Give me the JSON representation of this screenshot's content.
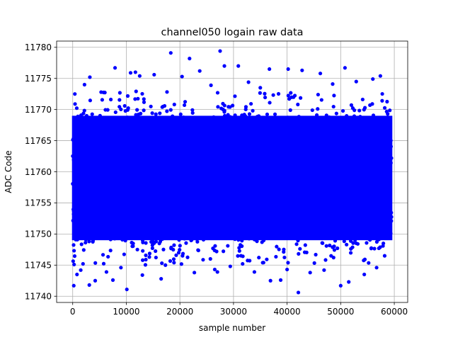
{
  "chart_data": {
    "type": "scatter",
    "title": "channel050 logain raw data",
    "xlabel": "sample number",
    "ylabel": "ADC Code",
    "xlim": [
      -3000,
      62500
    ],
    "ylim": [
      11739,
      11781
    ],
    "xticks": [
      0,
      10000,
      20000,
      30000,
      40000,
      50000,
      60000
    ],
    "xtick_labels": [
      "0",
      "10000",
      "20000",
      "30000",
      "40000",
      "50000",
      "60000"
    ],
    "yticks": [
      11740,
      11745,
      11750,
      11755,
      11760,
      11765,
      11770,
      11775,
      11780
    ],
    "ytick_labels": [
      "11740",
      "11745",
      "11750",
      "11755",
      "11760",
      "11765",
      "11770",
      "11775",
      "11780"
    ],
    "grid": true,
    "marker_color": "#0000ff",
    "series": [
      {
        "x_range": [
          0,
          59500
        ],
        "dense_band": [
          11746,
          11772
        ],
        "core": [
          11749,
          11769
        ],
        "outliers": [
          [
            200,
            11741.7
          ],
          [
            400,
            11772.5
          ],
          [
            800,
            11743.5
          ],
          [
            1500,
            11744.2
          ],
          [
            2200,
            11774.0
          ],
          [
            3200,
            11775.2
          ],
          [
            3100,
            11741.8
          ],
          [
            4200,
            11742.5
          ],
          [
            5300,
            11772.8
          ],
          [
            6300,
            11743.9
          ],
          [
            7900,
            11776.7
          ],
          [
            7500,
            11742.6
          ],
          [
            9000,
            11744.6
          ],
          [
            10100,
            11741.1
          ],
          [
            10800,
            11775.9
          ],
          [
            12500,
            11775.4
          ],
          [
            13000,
            11743.4
          ],
          [
            15200,
            11775.6
          ],
          [
            16500,
            11742.8
          ],
          [
            17300,
            11745.0
          ],
          [
            18300,
            11779.1
          ],
          [
            18900,
            11745.4
          ],
          [
            20400,
            11775.3
          ],
          [
            21800,
            11778.2
          ],
          [
            22700,
            11743.8
          ],
          [
            23700,
            11776.2
          ],
          [
            25800,
            11773.9
          ],
          [
            27000,
            11743.9
          ],
          [
            27500,
            11779.4
          ],
          [
            28300,
            11777.0
          ],
          [
            29400,
            11744.8
          ],
          [
            30900,
            11777.0
          ],
          [
            32800,
            11774.4
          ],
          [
            33900,
            11743.9
          ],
          [
            35000,
            11773.5
          ],
          [
            36900,
            11742.5
          ],
          [
            36700,
            11776.5
          ],
          [
            38800,
            11742.6
          ],
          [
            40200,
            11776.5
          ],
          [
            40000,
            11744.3
          ],
          [
            42100,
            11740.6
          ],
          [
            42800,
            11776.3
          ],
          [
            44300,
            11743.8
          ],
          [
            46200,
            11775.8
          ],
          [
            46900,
            11744.2
          ],
          [
            48500,
            11774.1
          ],
          [
            50000,
            11741.7
          ],
          [
            50800,
            11776.7
          ],
          [
            51500,
            11742.3
          ],
          [
            52900,
            11774.5
          ],
          [
            54400,
            11743.5
          ],
          [
            56000,
            11774.9
          ],
          [
            56700,
            11744.6
          ],
          [
            57400,
            11775.4
          ],
          [
            58200,
            11746.5
          ],
          [
            58900,
            11749.5
          ],
          [
            26500,
            11744.3
          ],
          [
            14300,
            11746.3
          ],
          [
            11700,
            11776.0
          ],
          [
            31700,
            11745.2
          ]
        ]
      }
    ]
  }
}
